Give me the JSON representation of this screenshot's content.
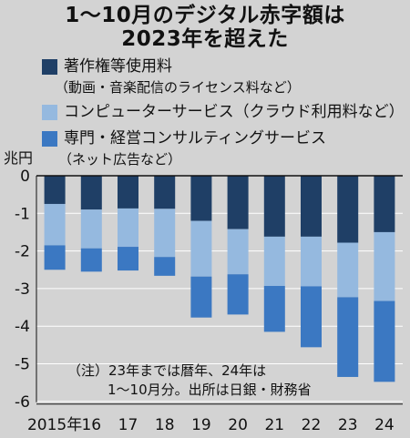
{
  "header": {
    "title_line1": "1～10月のデジタル赤字額は",
    "title_line2": "2023年を超えた"
  },
  "legend": [
    {
      "label": "著作権等使用料",
      "sub": "（動画・音楽配信のライセンス料など）",
      "color": "#1f3f66"
    },
    {
      "label": "コンピューターサービス（クラウド利用料など）",
      "sub": "",
      "color": "#95b9df"
    },
    {
      "label": "専門・経営コンサルティングサービス",
      "sub": "（ネット広告など）",
      "color": "#3b78c2"
    }
  ],
  "unit_label": "兆円",
  "note": {
    "line1": "（注）23年までは暦年、24年は",
    "line2": "1～10月分。出所は日銀・財務省"
  },
  "chart_data": {
    "type": "bar",
    "stacked": true,
    "categories": [
      "2015年",
      "16",
      "17",
      "18",
      "19",
      "20",
      "21",
      "22",
      "23",
      "24"
    ],
    "series": [
      {
        "name": "著作権等使用料",
        "values": [
          -0.75,
          -0.9,
          -0.87,
          -0.88,
          -1.2,
          -1.42,
          -1.62,
          -1.62,
          -1.78,
          -1.5
        ]
      },
      {
        "name": "コンピューターサービス",
        "values": [
          -1.1,
          -1.03,
          -1.02,
          -1.28,
          -1.48,
          -1.2,
          -1.31,
          -1.32,
          -1.45,
          -1.83
        ]
      },
      {
        "name": "専門・経営コンサルティングサービス",
        "values": [
          -0.65,
          -0.62,
          -0.63,
          -0.5,
          -1.09,
          -1.07,
          -1.22,
          -1.62,
          -2.12,
          -2.15
        ]
      }
    ],
    "ylim": [
      -6,
      0
    ],
    "yticks": [
      0,
      -1,
      -2,
      -3,
      -4,
      -5,
      -6
    ],
    "ytick_labels": [
      "0",
      "-1",
      "-2",
      "-3",
      "-4",
      "-5",
      "-6"
    ],
    "colors": [
      "#1f3f66",
      "#95b9df",
      "#3b78c2"
    ],
    "grid": true
  }
}
